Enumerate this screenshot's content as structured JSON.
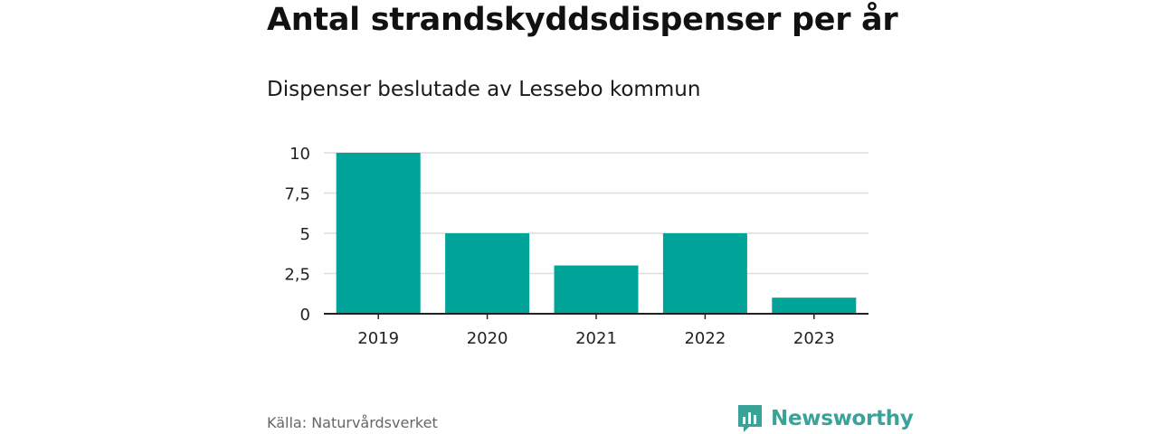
{
  "header": {
    "title": "Antal strandskyddsdispenser per år",
    "subtitle": "Dispenser beslutade av Lessebo kommun"
  },
  "footer": {
    "source": "Källa: Naturvårdsverket",
    "brand": "Newsworthy"
  },
  "colors": {
    "bar": "#00a398",
    "grid": "#dddddd",
    "axis": "#222222",
    "brand": "#3aa399"
  },
  "chart_data": {
    "type": "bar",
    "title": "Antal strandskyddsdispenser per år",
    "subtitle": "Dispenser beslutade av Lessebo kommun",
    "xlabel": "",
    "ylabel": "",
    "categories": [
      "2019",
      "2020",
      "2021",
      "2022",
      "2023"
    ],
    "values": [
      10,
      5,
      3,
      5,
      1
    ],
    "ylim": [
      0,
      10
    ],
    "yticks": [
      0,
      2.5,
      5,
      7.5,
      10
    ],
    "ytick_labels": [
      "0",
      "2,5",
      "5",
      "7,5",
      "10"
    ],
    "grid": true,
    "legend": "none"
  }
}
